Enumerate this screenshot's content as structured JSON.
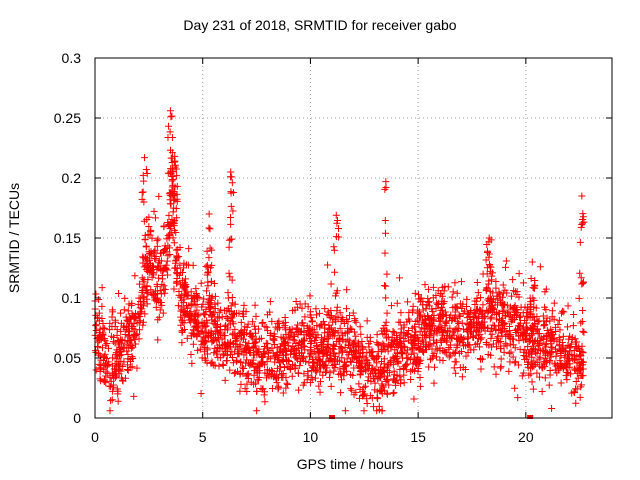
{
  "chart_data": {
    "type": "scatter",
    "title": "Day 231 of 2018, SRMTID for receiver gabo",
    "xlabel": "GPS time / hours",
    "ylabel": "SRMTID / TECUs",
    "xlim": [
      0,
      24
    ],
    "ylim": [
      0,
      0.3
    ],
    "xticks": [
      0,
      5,
      10,
      15,
      20
    ],
    "yticks": [
      0,
      0.05,
      0.1,
      0.15,
      0.2,
      0.25,
      0.3
    ],
    "xtick_labels": [
      "0",
      "5",
      "10",
      "15",
      "20"
    ],
    "ytick_labels": [
      "0",
      "0.05",
      "0.1",
      "0.15",
      "0.2",
      "0.25",
      "0.3"
    ],
    "grid": true,
    "marker": "+",
    "color": "#ff0000",
    "series_profile": {
      "name": "SRMTID",
      "time_hours": [
        0.0,
        0.3,
        0.6,
        0.9,
        1.2,
        1.6,
        2.0,
        2.3,
        2.5,
        2.8,
        3.1,
        3.4,
        3.6,
        3.8,
        4.0,
        4.3,
        4.6,
        5.0,
        5.5,
        6.0,
        6.3,
        6.6,
        7.0,
        7.5,
        8.0,
        8.5,
        9.0,
        9.5,
        10.0,
        10.5,
        11.0,
        11.5,
        12.0,
        12.5,
        13.0,
        13.5,
        14.0,
        14.5,
        15.0,
        15.5,
        16.0,
        16.5,
        17.0,
        17.5,
        18.0,
        18.5,
        19.0,
        19.5,
        20.0,
        20.5,
        21.0,
        21.5,
        22.0,
        22.4,
        22.7
      ],
      "typical_value": [
        0.08,
        0.06,
        0.045,
        0.05,
        0.055,
        0.065,
        0.08,
        0.1,
        0.14,
        0.12,
        0.1,
        0.15,
        0.18,
        0.13,
        0.1,
        0.09,
        0.085,
        0.08,
        0.075,
        0.07,
        0.08,
        0.065,
        0.055,
        0.05,
        0.05,
        0.055,
        0.06,
        0.06,
        0.06,
        0.055,
        0.06,
        0.06,
        0.055,
        0.045,
        0.04,
        0.04,
        0.055,
        0.06,
        0.065,
        0.075,
        0.08,
        0.075,
        0.07,
        0.075,
        0.08,
        0.085,
        0.08,
        0.075,
        0.07,
        0.065,
        0.06,
        0.055,
        0.05,
        0.045,
        0.05
      ],
      "peaks": [
        {
          "time": 2.3,
          "value": 0.217
        },
        {
          "time": 3.5,
          "value": 0.256
        },
        {
          "time": 3.7,
          "value": 0.218
        },
        {
          "time": 6.3,
          "value": 0.205
        },
        {
          "time": 5.3,
          "value": 0.17
        },
        {
          "time": 11.2,
          "value": 0.169
        },
        {
          "time": 13.5,
          "value": 0.197
        },
        {
          "time": 18.3,
          "value": 0.15
        },
        {
          "time": 20.3,
          "value": 0.13
        },
        {
          "time": 22.6,
          "value": 0.185
        }
      ]
    },
    "zero_points": [
      11.0,
      20.2
    ]
  }
}
